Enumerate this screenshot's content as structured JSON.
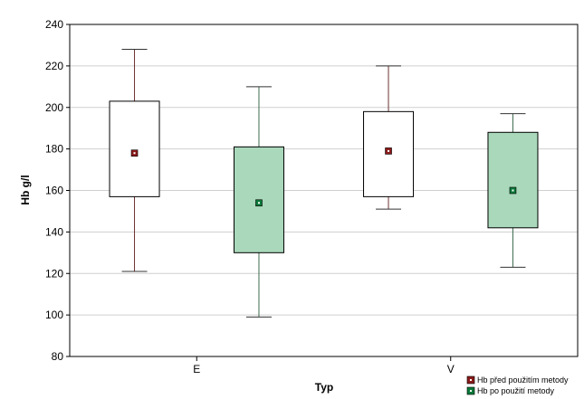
{
  "chart_data": {
    "type": "box",
    "xlabel": "Typ",
    "ylabel": "Hb g/l",
    "ylim": [
      80,
      240
    ],
    "yticks": [
      80,
      100,
      120,
      140,
      160,
      180,
      200,
      220,
      240
    ],
    "grid": true,
    "legend_position": "bottom-right",
    "categories": [
      "E",
      "V"
    ],
    "series": [
      {
        "name": "Hb před použitím metody",
        "box_color": "#ffffff",
        "marker_color": "#8b1a1a",
        "boxes": [
          {
            "category": "E",
            "whisker_low": 121,
            "q1": 157,
            "median": 178,
            "q3": 203,
            "whisker_high": 228
          },
          {
            "category": "V",
            "whisker_low": 151,
            "q1": 157,
            "median": 179,
            "q3": 198,
            "whisker_high": 220
          }
        ]
      },
      {
        "name": "Hb po použití metody",
        "box_color": "#a9d8bb",
        "marker_color": "#0b7a3a",
        "boxes": [
          {
            "category": "E",
            "whisker_low": 99,
            "q1": 130,
            "median": 154,
            "q3": 181,
            "whisker_high": 210
          },
          {
            "category": "V",
            "whisker_low": 123,
            "q1": 142,
            "median": 160,
            "q3": 188,
            "whisker_high": 197
          }
        ]
      }
    ]
  }
}
